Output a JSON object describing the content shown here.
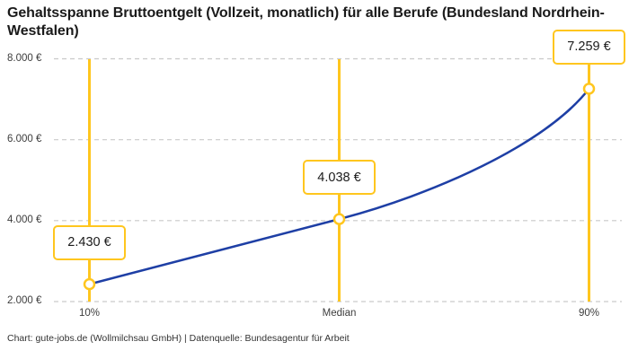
{
  "title": "Gehaltsspanne Bruttoentgelt (Vollzeit, monatlich) für alle Berufe (Bundesland Nordrhein-Westfalen)",
  "footer": "Chart: gute-jobs.de (Wollmilchsau GmbH) | Datenquelle: Bundesagentur für Arbeit",
  "chart_data": {
    "type": "line",
    "title": "Gehaltsspanne Bruttoentgelt (Vollzeit, monatlich) für alle Berufe (Bundesland Nordrhein-Westfalen)",
    "categories": [
      "10%",
      "Median",
      "90%"
    ],
    "values": [
      2430,
      4038,
      7259
    ],
    "point_labels": [
      "2.430 €",
      "4.038 €",
      "7.259 €"
    ],
    "yticks": [
      {
        "value": 2000,
        "label": "2.000 €"
      },
      {
        "value": 4000,
        "label": "4.000 €"
      },
      {
        "value": 6000,
        "label": "6.000 €"
      },
      {
        "value": 8000,
        "label": "8.000 €"
      }
    ],
    "ylim": [
      2000,
      8000
    ],
    "xlabel": "",
    "ylabel": "",
    "grid": "horizontal-dashed",
    "legend": "none",
    "colors": {
      "line": "#1E3FA5",
      "marker_stroke": "#FFC61E",
      "marker_fill": "#FFFFFF",
      "percentile_line": "#FFC61E",
      "label_box_border": "#FFC61E",
      "grid": "#C9C9C9",
      "text": "#1A1A1A",
      "axis_text": "#3D3D3D"
    }
  }
}
